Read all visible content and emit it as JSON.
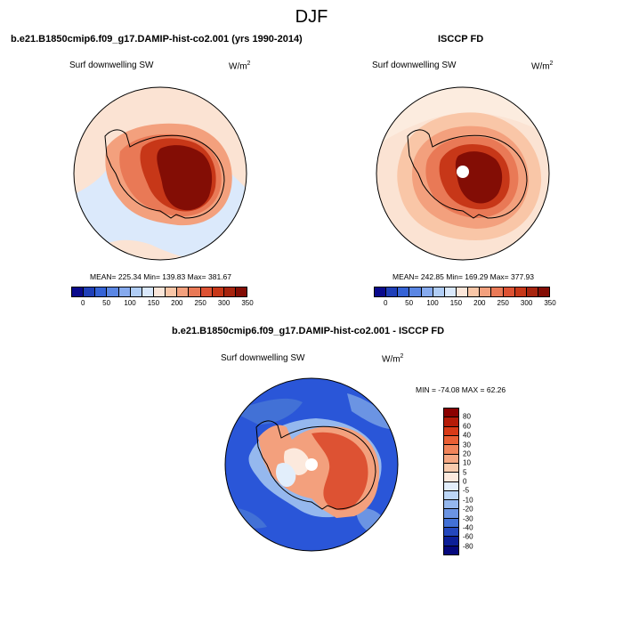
{
  "title": "DJF",
  "panels": [
    {
      "title": "b.e21.B1850cmip6.f09_g17.DAMIP-hist-co2.001 (yrs 1990-2014)",
      "left_label": "Surf downwelling SW",
      "units_base": "W/m",
      "units_exp": "2",
      "stats": "MEAN= 225.34  Min= 139.83  Max= 381.67"
    },
    {
      "title": "ISCCP FD",
      "left_label": "Surf downwelling SW",
      "units_base": "W/m",
      "units_exp": "2",
      "stats": "MEAN= 242.85  Min= 169.29  Max= 377.93"
    },
    {
      "title": "b.e21.B1850cmip6.f09_g17.DAMIP-hist-co2.001 - ISCCP FD",
      "left_label": "Surf downwelling SW",
      "units_base": "W/m",
      "units_exp": "2",
      "stats": "MIN = -74.08 MAX =  62.26"
    }
  ],
  "abs_colorbar": {
    "labels": [
      "0",
      "50",
      "100",
      "150",
      "200",
      "250",
      "300",
      "350"
    ],
    "colors": [
      "#0a0a8c",
      "#1f3fb8",
      "#3563d6",
      "#5a86e3",
      "#86aaee",
      "#b0cdf5",
      "#d9e8fb",
      "#fbe6d9",
      "#f9c6a7",
      "#f3a07d",
      "#e97956",
      "#dd5233",
      "#c73718",
      "#a7240e",
      "#830d05"
    ]
  },
  "diff_colorbar": {
    "labels": [
      "80",
      "60",
      "40",
      "30",
      "20",
      "10",
      "5",
      "0",
      "-5",
      "-10",
      "-20",
      "-30",
      "-40",
      "-60",
      "-80"
    ],
    "colors": [
      "#8b0000",
      "#b51b08",
      "#d83a17",
      "#ea5f34",
      "#f1845a",
      "#f6a883",
      "#f9cbad",
      "#fce9dd",
      "#e2eefb",
      "#bcd6f6",
      "#95b8ee",
      "#6b94e3",
      "#4271d6",
      "#2347bd",
      "#0c1f98",
      "#05087d"
    ]
  },
  "map_colors": {
    "ocean_low": "#dbe9fb",
    "ocean_mid": "#fbe3d3",
    "ice_high": "#8b0e05",
    "diff_neg": "#2a56d8",
    "diff_pos": "#ea6a42"
  }
}
